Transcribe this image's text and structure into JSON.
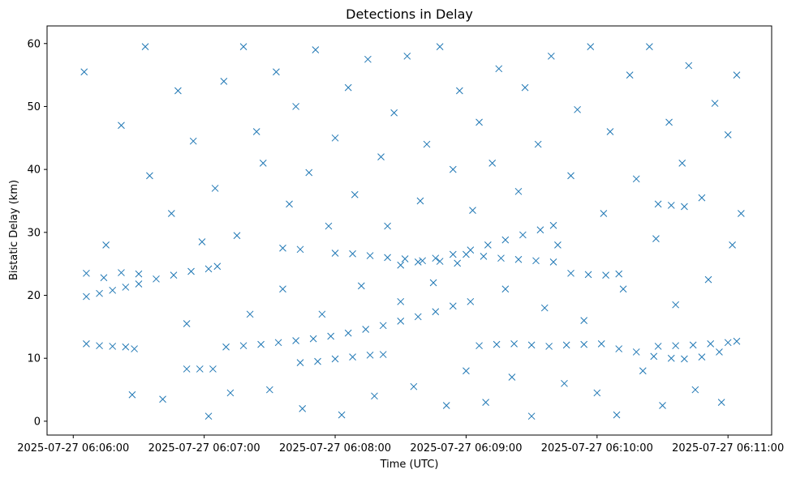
{
  "chart_data": {
    "type": "scatter",
    "title": "Detections in Delay",
    "xlabel": "Time (UTC)",
    "ylabel": "Bistatic Delay (km)",
    "marker": "x",
    "marker_color": "#1f77b4",
    "xlim": [
      "2025-07-27 06:05:48",
      "2025-07-27 06:11:20"
    ],
    "ylim": [
      -2.2,
      62.8
    ],
    "xticks": [
      {
        "label": "2025-07-27 06:06:00",
        "time": "2025-07-27 06:06:00"
      },
      {
        "label": "2025-07-27 06:07:00",
        "time": "2025-07-27 06:07:00"
      },
      {
        "label": "2025-07-27 06:08:00",
        "time": "2025-07-27 06:08:00"
      },
      {
        "label": "2025-07-27 06:09:00",
        "time": "2025-07-27 06:09:00"
      },
      {
        "label": "2025-07-27 06:10:00",
        "time": "2025-07-27 06:10:00"
      },
      {
        "label": "2025-07-27 06:11:00",
        "time": "2025-07-27 06:11:00"
      }
    ],
    "yticks": [
      0,
      10,
      20,
      30,
      40,
      50,
      60
    ],
    "grid": false,
    "legend": "none",
    "series": [
      {
        "points": [
          [
            "2025-07-27 06:06:06",
            12.3
          ],
          [
            "2025-07-27 06:06:12",
            12.0
          ],
          [
            "2025-07-27 06:06:18",
            11.9
          ],
          [
            "2025-07-27 06:06:24",
            11.8
          ],
          [
            "2025-07-27 06:06:28",
            11.5
          ],
          [
            "2025-07-27 06:06:52",
            8.3
          ],
          [
            "2025-07-27 06:06:58",
            8.3
          ],
          [
            "2025-07-27 06:07:04",
            8.3
          ],
          [
            "2025-07-27 06:07:10",
            11.8
          ],
          [
            "2025-07-27 06:07:18",
            12.0
          ],
          [
            "2025-07-27 06:07:26",
            12.2
          ],
          [
            "2025-07-27 06:07:34",
            12.5
          ],
          [
            "2025-07-27 06:07:42",
            12.8
          ],
          [
            "2025-07-27 06:07:50",
            13.1
          ],
          [
            "2025-07-27 06:07:58",
            13.5
          ],
          [
            "2025-07-27 06:08:06",
            14.0
          ],
          [
            "2025-07-27 06:08:14",
            14.6
          ],
          [
            "2025-07-27 06:08:22",
            15.2
          ],
          [
            "2025-07-27 06:08:30",
            15.9
          ],
          [
            "2025-07-27 06:08:38",
            16.6
          ],
          [
            "2025-07-27 06:08:46",
            17.4
          ],
          [
            "2025-07-27 06:08:54",
            18.3
          ],
          [
            "2025-07-27 06:09:02",
            19.0
          ],
          [
            "2025-07-27 06:07:44",
            9.3
          ],
          [
            "2025-07-27 06:07:52",
            9.5
          ],
          [
            "2025-07-27 06:08:00",
            9.9
          ],
          [
            "2025-07-27 06:08:08",
            10.2
          ],
          [
            "2025-07-27 06:08:16",
            10.5
          ],
          [
            "2025-07-27 06:08:22",
            10.6
          ],
          [
            "2025-07-27 06:09:06",
            12.0
          ],
          [
            "2025-07-27 06:09:14",
            12.2
          ],
          [
            "2025-07-27 06:09:22",
            12.3
          ],
          [
            "2025-07-27 06:09:30",
            12.1
          ],
          [
            "2025-07-27 06:09:38",
            11.9
          ],
          [
            "2025-07-27 06:09:46",
            12.1
          ],
          [
            "2025-07-27 06:09:54",
            12.2
          ],
          [
            "2025-07-27 06:10:02",
            12.3
          ],
          [
            "2025-07-27 06:10:10",
            11.5
          ],
          [
            "2025-07-27 06:10:18",
            11.0
          ],
          [
            "2025-07-27 06:10:26",
            10.3
          ],
          [
            "2025-07-27 06:10:34",
            10.0
          ],
          [
            "2025-07-27 06:10:28",
            11.9
          ],
          [
            "2025-07-27 06:10:36",
            12.0
          ],
          [
            "2025-07-27 06:10:44",
            12.1
          ],
          [
            "2025-07-27 06:10:52",
            12.3
          ],
          [
            "2025-07-27 06:11:00",
            12.5
          ],
          [
            "2025-07-27 06:11:04",
            12.7
          ],
          [
            "2025-07-27 06:10:40",
            9.9
          ],
          [
            "2025-07-27 06:10:48",
            10.2
          ],
          [
            "2025-07-27 06:10:56",
            11.0
          ],
          [
            "2025-07-27 06:06:06",
            19.8
          ],
          [
            "2025-07-27 06:06:12",
            20.3
          ],
          [
            "2025-07-27 06:06:18",
            20.8
          ],
          [
            "2025-07-27 06:06:24",
            21.3
          ],
          [
            "2025-07-27 06:06:30",
            21.8
          ],
          [
            "2025-07-27 06:06:38",
            22.6
          ],
          [
            "2025-07-27 06:06:46",
            23.2
          ],
          [
            "2025-07-27 06:06:54",
            23.8
          ],
          [
            "2025-07-27 06:07:02",
            24.2
          ],
          [
            "2025-07-27 06:07:06",
            24.6
          ],
          [
            "2025-07-27 06:06:06",
            23.5
          ],
          [
            "2025-07-27 06:06:14",
            22.8
          ],
          [
            "2025-07-27 06:06:22",
            23.6
          ],
          [
            "2025-07-27 06:06:30",
            23.4
          ],
          [
            "2025-07-27 06:07:36",
            27.5
          ],
          [
            "2025-07-27 06:07:44",
            27.3
          ],
          [
            "2025-07-27 06:08:00",
            26.7
          ],
          [
            "2025-07-27 06:08:08",
            26.6
          ],
          [
            "2025-07-27 06:08:16",
            26.3
          ],
          [
            "2025-07-27 06:08:24",
            26.0
          ],
          [
            "2025-07-27 06:08:32",
            25.8
          ],
          [
            "2025-07-27 06:08:40",
            25.5
          ],
          [
            "2025-07-27 06:08:48",
            25.4
          ],
          [
            "2025-07-27 06:08:56",
            25.1
          ],
          [
            "2025-07-27 06:08:30",
            24.8
          ],
          [
            "2025-07-27 06:08:38",
            25.3
          ],
          [
            "2025-07-27 06:08:46",
            25.9
          ],
          [
            "2025-07-27 06:08:54",
            26.5
          ],
          [
            "2025-07-27 06:09:02",
            27.2
          ],
          [
            "2025-07-27 06:09:10",
            28.0
          ],
          [
            "2025-07-27 06:09:18",
            28.8
          ],
          [
            "2025-07-27 06:09:26",
            29.6
          ],
          [
            "2025-07-27 06:09:34",
            30.4
          ],
          [
            "2025-07-27 06:09:40",
            31.1
          ],
          [
            "2025-07-27 06:09:00",
            26.5
          ],
          [
            "2025-07-27 06:09:08",
            26.2
          ],
          [
            "2025-07-27 06:09:16",
            25.9
          ],
          [
            "2025-07-27 06:09:24",
            25.7
          ],
          [
            "2025-07-27 06:09:32",
            25.5
          ],
          [
            "2025-07-27 06:09:40",
            25.3
          ],
          [
            "2025-07-27 06:09:48",
            23.5
          ],
          [
            "2025-07-27 06:09:56",
            23.3
          ],
          [
            "2025-07-27 06:10:04",
            23.2
          ],
          [
            "2025-07-27 06:10:10",
            23.4
          ],
          [
            "2025-07-27 06:10:28",
            34.5
          ],
          [
            "2025-07-27 06:10:34",
            34.3
          ],
          [
            "2025-07-27 06:10:40",
            34.1
          ],
          [
            "2025-07-27 06:06:05",
            55.5
          ],
          [
            "2025-07-27 06:06:15",
            28.0
          ],
          [
            "2025-07-27 06:06:22",
            47.0
          ],
          [
            "2025-07-27 06:06:27",
            4.2
          ],
          [
            "2025-07-27 06:06:33",
            59.5
          ],
          [
            "2025-07-27 06:06:35",
            39.0
          ],
          [
            "2025-07-27 06:06:41",
            3.5
          ],
          [
            "2025-07-27 06:06:45",
            33.0
          ],
          [
            "2025-07-27 06:06:48",
            52.5
          ],
          [
            "2025-07-27 06:06:52",
            15.5
          ],
          [
            "2025-07-27 06:06:55",
            44.5
          ],
          [
            "2025-07-27 06:06:59",
            28.5
          ],
          [
            "2025-07-27 06:07:02",
            0.8
          ],
          [
            "2025-07-27 06:07:05",
            37.0
          ],
          [
            "2025-07-27 06:07:09",
            54.0
          ],
          [
            "2025-07-27 06:07:12",
            4.5
          ],
          [
            "2025-07-27 06:07:15",
            29.5
          ],
          [
            "2025-07-27 06:07:18",
            59.5
          ],
          [
            "2025-07-27 06:07:21",
            17.0
          ],
          [
            "2025-07-27 06:07:24",
            46.0
          ],
          [
            "2025-07-27 06:07:27",
            41.0
          ],
          [
            "2025-07-27 06:07:30",
            5.0
          ],
          [
            "2025-07-27 06:07:33",
            55.5
          ],
          [
            "2025-07-27 06:07:36",
            21.0
          ],
          [
            "2025-07-27 06:07:39",
            34.5
          ],
          [
            "2025-07-27 06:07:42",
            50.0
          ],
          [
            "2025-07-27 06:07:45",
            2.0
          ],
          [
            "2025-07-27 06:07:48",
            39.5
          ],
          [
            "2025-07-27 06:07:51",
            59.0
          ],
          [
            "2025-07-27 06:07:54",
            17.0
          ],
          [
            "2025-07-27 06:07:57",
            31.0
          ],
          [
            "2025-07-27 06:08:00",
            45.0
          ],
          [
            "2025-07-27 06:08:03",
            1.0
          ],
          [
            "2025-07-27 06:08:06",
            53.0
          ],
          [
            "2025-07-27 06:08:09",
            36.0
          ],
          [
            "2025-07-27 06:08:12",
            21.5
          ],
          [
            "2025-07-27 06:08:15",
            57.5
          ],
          [
            "2025-07-27 06:08:18",
            4.0
          ],
          [
            "2025-07-27 06:08:21",
            42.0
          ],
          [
            "2025-07-27 06:08:24",
            31.0
          ],
          [
            "2025-07-27 06:08:27",
            49.0
          ],
          [
            "2025-07-27 06:08:30",
            19.0
          ],
          [
            "2025-07-27 06:08:33",
            58.0
          ],
          [
            "2025-07-27 06:08:36",
            5.5
          ],
          [
            "2025-07-27 06:08:39",
            35.0
          ],
          [
            "2025-07-27 06:08:42",
            44.0
          ],
          [
            "2025-07-27 06:08:45",
            22.0
          ],
          [
            "2025-07-27 06:08:48",
            59.5
          ],
          [
            "2025-07-27 06:08:51",
            2.5
          ],
          [
            "2025-07-27 06:08:54",
            40.0
          ],
          [
            "2025-07-27 06:08:57",
            52.5
          ],
          [
            "2025-07-27 06:09:00",
            8.0
          ],
          [
            "2025-07-27 06:09:03",
            33.5
          ],
          [
            "2025-07-27 06:09:06",
            47.5
          ],
          [
            "2025-07-27 06:09:09",
            3.0
          ],
          [
            "2025-07-27 06:09:12",
            41.0
          ],
          [
            "2025-07-27 06:09:15",
            56.0
          ],
          [
            "2025-07-27 06:09:18",
            21.0
          ],
          [
            "2025-07-27 06:09:21",
            7.0
          ],
          [
            "2025-07-27 06:09:24",
            36.5
          ],
          [
            "2025-07-27 06:09:27",
            53.0
          ],
          [
            "2025-07-27 06:09:30",
            0.8
          ],
          [
            "2025-07-27 06:09:33",
            44.0
          ],
          [
            "2025-07-27 06:09:36",
            18.0
          ],
          [
            "2025-07-27 06:09:39",
            58.0
          ],
          [
            "2025-07-27 06:09:42",
            28.0
          ],
          [
            "2025-07-27 06:09:45",
            6.0
          ],
          [
            "2025-07-27 06:09:48",
            39.0
          ],
          [
            "2025-07-27 06:09:51",
            49.5
          ],
          [
            "2025-07-27 06:09:54",
            16.0
          ],
          [
            "2025-07-27 06:09:57",
            59.5
          ],
          [
            "2025-07-27 06:10:00",
            4.5
          ],
          [
            "2025-07-27 06:10:03",
            33.0
          ],
          [
            "2025-07-27 06:10:06",
            46.0
          ],
          [
            "2025-07-27 06:10:09",
            1.0
          ],
          [
            "2025-07-27 06:10:12",
            21.0
          ],
          [
            "2025-07-27 06:10:15",
            55.0
          ],
          [
            "2025-07-27 06:10:18",
            38.5
          ],
          [
            "2025-07-27 06:10:21",
            8.0
          ],
          [
            "2025-07-27 06:10:24",
            59.5
          ],
          [
            "2025-07-27 06:10:27",
            29.0
          ],
          [
            "2025-07-27 06:10:30",
            2.5
          ],
          [
            "2025-07-27 06:10:33",
            47.5
          ],
          [
            "2025-07-27 06:10:36",
            18.5
          ],
          [
            "2025-07-27 06:10:39",
            41.0
          ],
          [
            "2025-07-27 06:10:42",
            56.5
          ],
          [
            "2025-07-27 06:10:45",
            5.0
          ],
          [
            "2025-07-27 06:10:48",
            35.5
          ],
          [
            "2025-07-27 06:10:51",
            22.5
          ],
          [
            "2025-07-27 06:10:54",
            50.5
          ],
          [
            "2025-07-27 06:10:57",
            3.0
          ],
          [
            "2025-07-27 06:11:00",
            45.5
          ],
          [
            "2025-07-27 06:11:02",
            28.0
          ],
          [
            "2025-07-27 06:11:04",
            55.0
          ],
          [
            "2025-07-27 06:11:06",
            33.0
          ]
        ]
      }
    ]
  }
}
